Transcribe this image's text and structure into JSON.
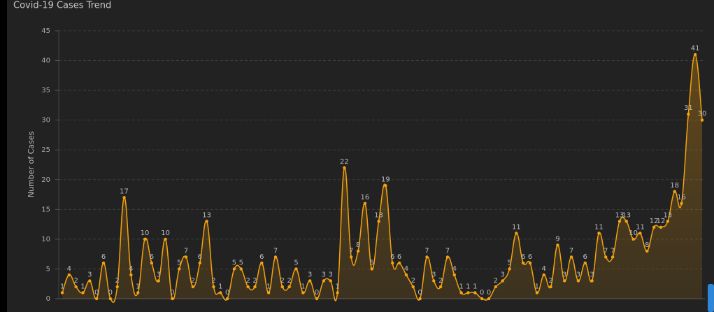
{
  "chart_data": {
    "type": "line",
    "title": "Covid-19 Cases Trend",
    "y_label": "Number of Cases",
    "color": "#f5a20c",
    "values": [
      1,
      4,
      2,
      1,
      3,
      0,
      6,
      0,
      2,
      17,
      4,
      1,
      10,
      6,
      3,
      10,
      0,
      5,
      7,
      2,
      6,
      13,
      2,
      1,
      0,
      5,
      5,
      2,
      2,
      6,
      1,
      7,
      2,
      2,
      5,
      1,
      3,
      0,
      3,
      3,
      1,
      22,
      7,
      8,
      16,
      5,
      13,
      19,
      6,
      6,
      4,
      2,
      0,
      7,
      3,
      2,
      7,
      4,
      1,
      1,
      1,
      0,
      0,
      2,
      3,
      5,
      11,
      6,
      6,
      1,
      4,
      2,
      9,
      3,
      7,
      3,
      6,
      3,
      11,
      7,
      7,
      13,
      13,
      10,
      11,
      8,
      12,
      12,
      13,
      18,
      16,
      31,
      41,
      30
    ],
    "ylim": [
      0,
      45
    ],
    "yticks": [
      0,
      5,
      10,
      15,
      20,
      25,
      30,
      35,
      40,
      45
    ],
    "grid": true,
    "data_labels": true
  }
}
